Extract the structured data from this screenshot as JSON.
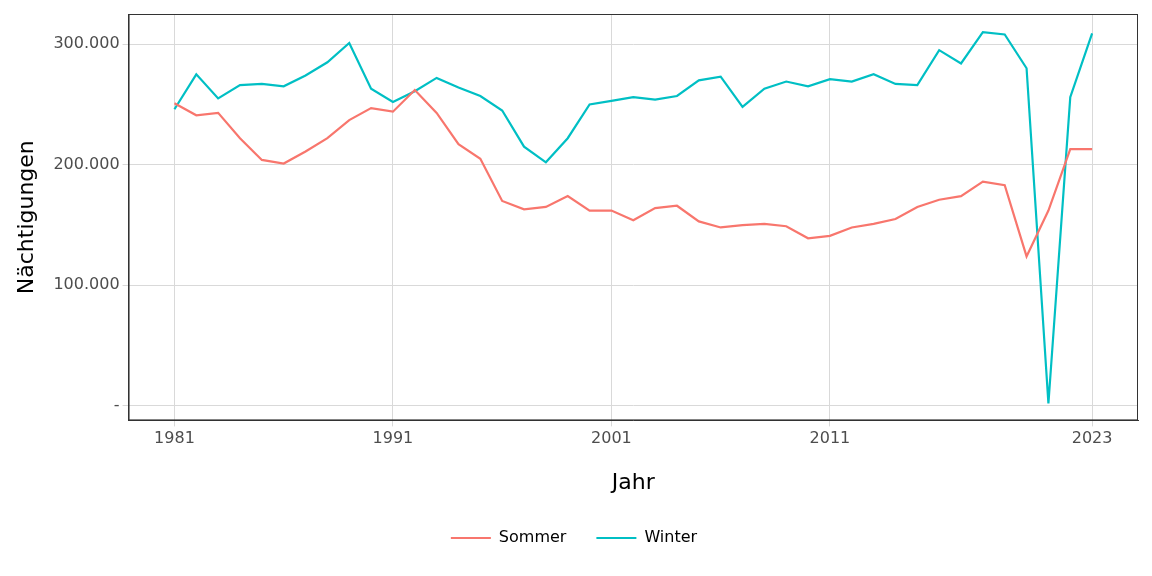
{
  "chart_data": {
    "type": "line",
    "x_label": "Jahr",
    "y_label": "Nächtigungen",
    "x": [
      1981,
      1982,
      1983,
      1984,
      1985,
      1986,
      1987,
      1988,
      1989,
      1990,
      1991,
      1992,
      1993,
      1994,
      1995,
      1996,
      1997,
      1998,
      1999,
      2000,
      2001,
      2002,
      2003,
      2004,
      2005,
      2006,
      2007,
      2008,
      2009,
      2010,
      2011,
      2012,
      2013,
      2014,
      2015,
      2016,
      2017,
      2018,
      2019,
      2020,
      2021,
      2022,
      2023
    ],
    "series": [
      {
        "name": "Sommer",
        "color": "#F8766D",
        "values": [
          251000,
          241000,
          243000,
          222000,
          204000,
          201000,
          211000,
          222000,
          237000,
          247000,
          244000,
          262000,
          243000,
          217000,
          205000,
          170000,
          163000,
          165000,
          174000,
          162000,
          162000,
          154000,
          164000,
          166000,
          153000,
          148000,
          150000,
          151000,
          149000,
          139000,
          141000,
          148000,
          151000,
          155000,
          165000,
          171000,
          174000,
          186000,
          183000,
          124000,
          162000,
          213000,
          213000
        ]
      },
      {
        "name": "Winter",
        "color": "#00BFC4",
        "values": [
          246000,
          275000,
          255000,
          266000,
          267000,
          265000,
          274000,
          285000,
          301000,
          263000,
          252000,
          261000,
          272000,
          264000,
          257000,
          245000,
          215000,
          202000,
          222000,
          250000,
          253000,
          256000,
          254000,
          257000,
          270000,
          273000,
          248000,
          263000,
          269000,
          265000,
          271000,
          269000,
          275000,
          267000,
          266000,
          295000,
          284000,
          310000,
          308000,
          280000,
          2000,
          256000,
          309000
        ]
      }
    ],
    "xlim": [
      1978.9,
      2025.1
    ],
    "xticks": [
      1981,
      1991,
      2001,
      2011,
      2023
    ],
    "ylim": [
      -12000,
      325000
    ],
    "yticks": [
      {
        "value": 0,
        "label": "-"
      },
      {
        "value": 100000,
        "label": "100.000"
      },
      {
        "value": 200000,
        "label": "200.000"
      },
      {
        "value": 300000,
        "label": "300.000"
      }
    ],
    "grid": true,
    "legend": "bottom"
  }
}
